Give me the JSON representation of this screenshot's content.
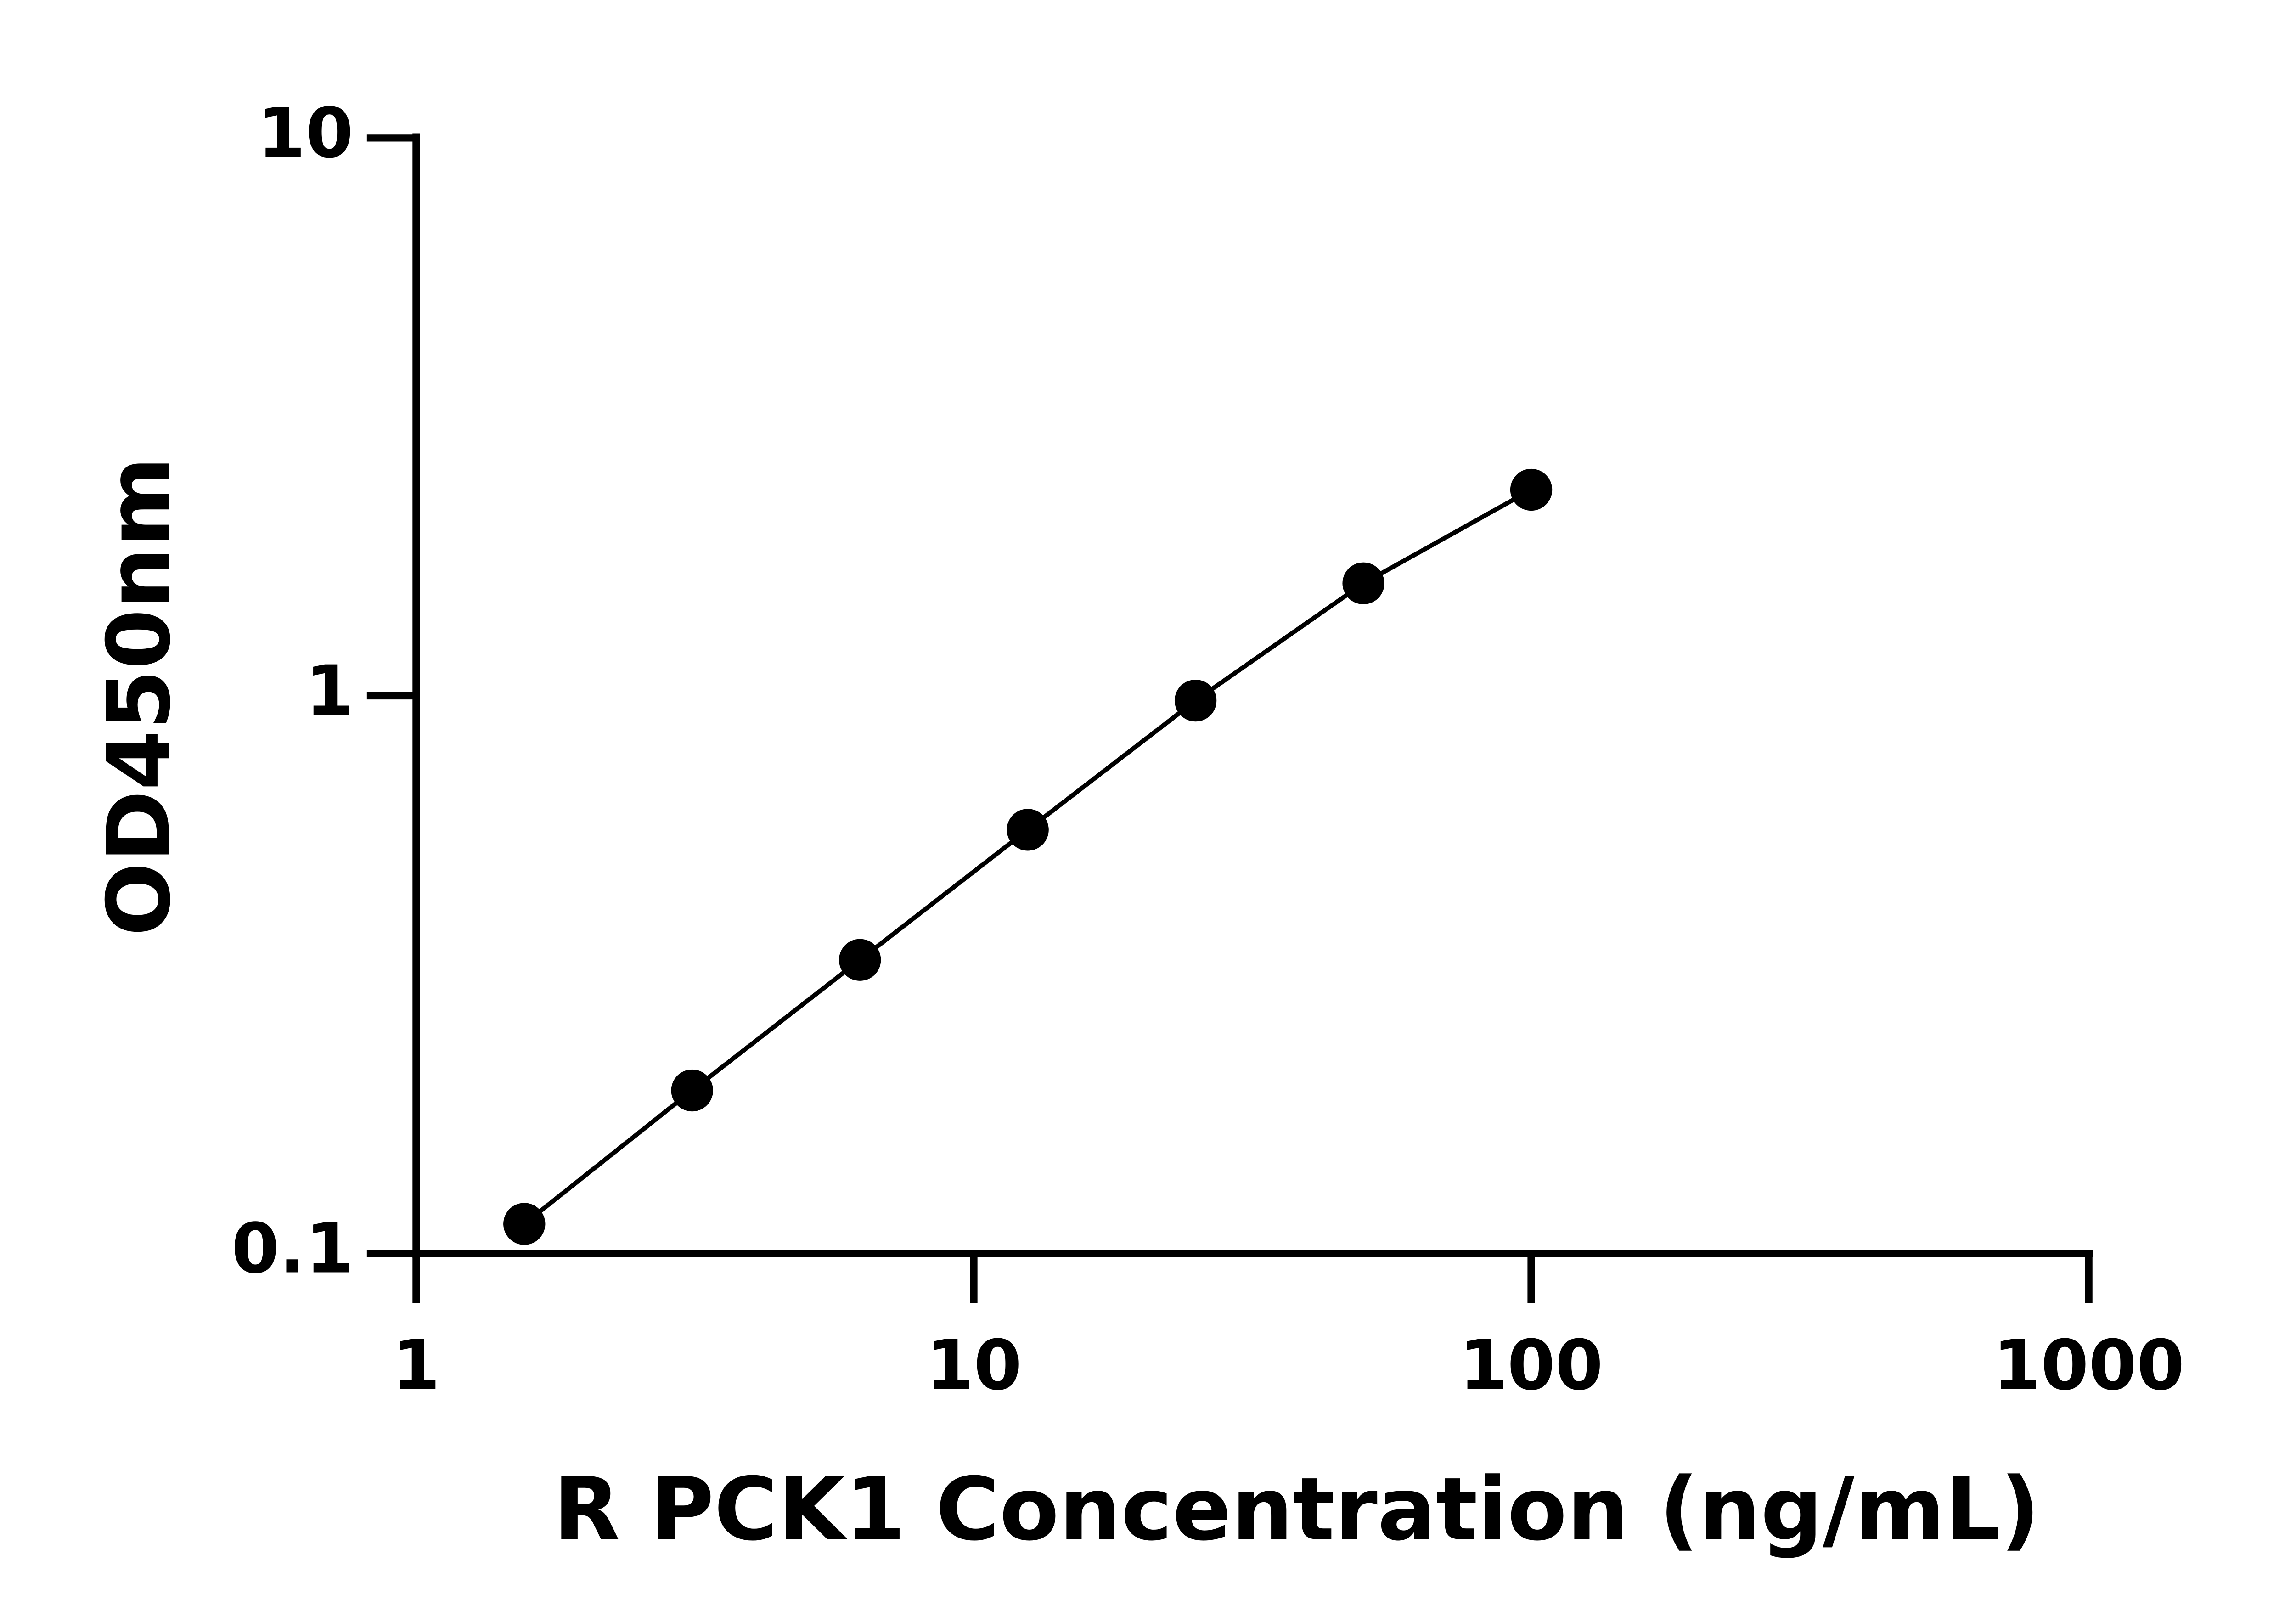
{
  "chart_data": {
    "type": "scatter",
    "xlabel": "R PCK1 Concentration (ng/mL)",
    "ylabel": "OD450nm",
    "x": [
      1.5625,
      3.125,
      6.25,
      12.5,
      25,
      50,
      100
    ],
    "values": [
      0.113,
      0.196,
      0.336,
      0.575,
      0.98,
      1.59,
      2.34
    ],
    "color": "#000000",
    "xscale": "log",
    "yscale": "log",
    "xlim": [
      1,
      1000
    ],
    "xticks": [
      1,
      10,
      100,
      1000
    ],
    "ylim": [
      0.1,
      10
    ],
    "yticks": [
      0.1,
      1,
      10
    ],
    "connect": true
  }
}
